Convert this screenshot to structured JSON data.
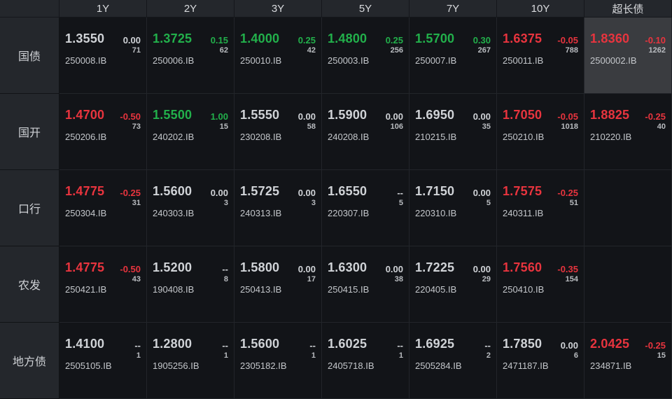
{
  "colors": {
    "up": "#e8343e",
    "down": "#22b04b",
    "flat": "#d0d3d7",
    "highlight": "#3a3c40"
  },
  "columns": [
    "1Y",
    "2Y",
    "3Y",
    "5Y",
    "7Y",
    "10Y",
    "超长债"
  ],
  "rows": [
    {
      "label": "国债",
      "cells": [
        {
          "yield": "1.3550",
          "change": "0.00",
          "volume": "71",
          "code": "250008.IB",
          "trend": "flat"
        },
        {
          "yield": "1.3725",
          "change": "0.15",
          "volume": "62",
          "code": "250006.IB",
          "trend": "down"
        },
        {
          "yield": "1.4000",
          "change": "0.25",
          "volume": "42",
          "code": "250010.IB",
          "trend": "down"
        },
        {
          "yield": "1.4800",
          "change": "0.25",
          "volume": "256",
          "code": "250003.IB",
          "trend": "down"
        },
        {
          "yield": "1.5700",
          "change": "0.30",
          "volume": "267",
          "code": "250007.IB",
          "trend": "down"
        },
        {
          "yield": "1.6375",
          "change": "-0.05",
          "volume": "788",
          "code": "250011.IB",
          "trend": "up"
        },
        {
          "yield": "1.8360",
          "change": "-0.10",
          "volume": "1262",
          "code": "2500002.IB",
          "trend": "up",
          "highlight": true
        }
      ]
    },
    {
      "label": "国开",
      "cells": [
        {
          "yield": "1.4700",
          "change": "-0.50",
          "volume": "73",
          "code": "250206.IB",
          "trend": "up"
        },
        {
          "yield": "1.5500",
          "change": "1.00",
          "volume": "15",
          "code": "240202.IB",
          "trend": "down"
        },
        {
          "yield": "1.5550",
          "change": "0.00",
          "volume": "58",
          "code": "230208.IB",
          "trend": "flat"
        },
        {
          "yield": "1.5900",
          "change": "0.00",
          "volume": "106",
          "code": "240208.IB",
          "trend": "flat"
        },
        {
          "yield": "1.6950",
          "change": "0.00",
          "volume": "35",
          "code": "210215.IB",
          "trend": "flat"
        },
        {
          "yield": "1.7050",
          "change": "-0.05",
          "volume": "1018",
          "code": "250210.IB",
          "trend": "up"
        },
        {
          "yield": "1.8825",
          "change": "-0.25",
          "volume": "40",
          "code": "210220.IB",
          "trend": "up"
        }
      ]
    },
    {
      "label": "口行",
      "cells": [
        {
          "yield": "1.4775",
          "change": "-0.25",
          "volume": "31",
          "code": "250304.IB",
          "trend": "up"
        },
        {
          "yield": "1.5600",
          "change": "0.00",
          "volume": "3",
          "code": "240303.IB",
          "trend": "flat"
        },
        {
          "yield": "1.5725",
          "change": "0.00",
          "volume": "3",
          "code": "240313.IB",
          "trend": "flat"
        },
        {
          "yield": "1.6550",
          "change": "--",
          "volume": "5",
          "code": "220307.IB",
          "trend": "flat"
        },
        {
          "yield": "1.7150",
          "change": "0.00",
          "volume": "5",
          "code": "220310.IB",
          "trend": "flat"
        },
        {
          "yield": "1.7575",
          "change": "-0.25",
          "volume": "51",
          "code": "240311.IB",
          "trend": "up"
        },
        null
      ]
    },
    {
      "label": "农发",
      "cells": [
        {
          "yield": "1.4775",
          "change": "-0.50",
          "volume": "43",
          "code": "250421.IB",
          "trend": "up"
        },
        {
          "yield": "1.5200",
          "change": "--",
          "volume": "8",
          "code": "190408.IB",
          "trend": "flat"
        },
        {
          "yield": "1.5800",
          "change": "0.00",
          "volume": "17",
          "code": "250413.IB",
          "trend": "flat"
        },
        {
          "yield": "1.6300",
          "change": "0.00",
          "volume": "38",
          "code": "250415.IB",
          "trend": "flat"
        },
        {
          "yield": "1.7225",
          "change": "0.00",
          "volume": "29",
          "code": "220405.IB",
          "trend": "flat"
        },
        {
          "yield": "1.7560",
          "change": "-0.35",
          "volume": "154",
          "code": "250410.IB",
          "trend": "up"
        },
        null
      ]
    },
    {
      "label": "地方债",
      "cells": [
        {
          "yield": "1.4100",
          "change": "--",
          "volume": "1",
          "code": "2505105.IB",
          "trend": "flat"
        },
        {
          "yield": "1.2800",
          "change": "--",
          "volume": "1",
          "code": "1905256.IB",
          "trend": "flat"
        },
        {
          "yield": "1.5600",
          "change": "--",
          "volume": "1",
          "code": "2305182.IB",
          "trend": "flat"
        },
        {
          "yield": "1.6025",
          "change": "--",
          "volume": "1",
          "code": "2405718.IB",
          "trend": "flat"
        },
        {
          "yield": "1.6925",
          "change": "--",
          "volume": "2",
          "code": "2505284.IB",
          "trend": "flat"
        },
        {
          "yield": "1.7850",
          "change": "0.00",
          "volume": "6",
          "code": "2471187.IB",
          "trend": "flat"
        },
        {
          "yield": "2.0425",
          "change": "-0.25",
          "volume": "15",
          "code": "234871.IB",
          "trend": "up"
        }
      ]
    }
  ]
}
